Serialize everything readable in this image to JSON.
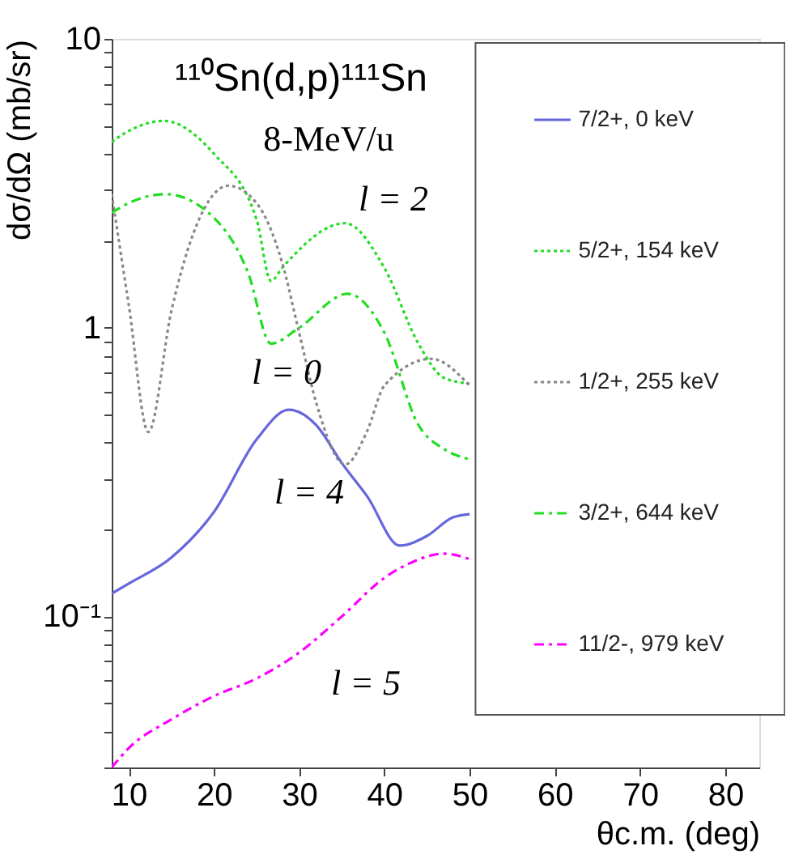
{
  "chart_data": {
    "type": "line",
    "title": "¹¹⁰Sn(d,p)¹¹¹Sn",
    "subtitle": "8-MeV/u",
    "xlabel": "θc.m. (deg)",
    "ylabel": "dσ/dΩ (mb/sr)",
    "log": "y",
    "grid": false,
    "legend": "right",
    "marker": "none",
    "xlim": [
      8,
      84
    ],
    "xticks": [
      10,
      20,
      30,
      40,
      50,
      60,
      70,
      80
    ],
    "ylim": [
      0.03,
      10
    ],
    "yticks": [
      {
        "value": 0.03,
        "label": null
      },
      {
        "value": 0.04,
        "label": null
      },
      {
        "value": 0.05,
        "label": null
      },
      {
        "value": 0.06,
        "label": null
      },
      {
        "value": 0.07,
        "label": null
      },
      {
        "value": 0.08,
        "label": null
      },
      {
        "value": 0.09,
        "label": null
      },
      {
        "value": 0.1,
        "label": "10⁻¹"
      },
      {
        "value": 0.2,
        "label": null
      },
      {
        "value": 0.3,
        "label": null
      },
      {
        "value": 0.4,
        "label": null
      },
      {
        "value": 0.5,
        "label": null
      },
      {
        "value": 0.6,
        "label": null
      },
      {
        "value": 0.7,
        "label": null
      },
      {
        "value": 0.8,
        "label": null
      },
      {
        "value": 0.9,
        "label": null
      },
      1,
      {
        "value": 2,
        "label": null
      },
      {
        "value": 3,
        "label": null
      },
      {
        "value": 4,
        "label": null
      },
      {
        "value": 5,
        "label": null
      },
      {
        "value": 6,
        "label": null
      },
      {
        "value": 7,
        "label": null
      },
      {
        "value": 8,
        "label": null
      },
      {
        "value": 9,
        "label": null
      },
      10
    ],
    "series": [
      {
        "name": "7/2+, 0 keV",
        "color": "#6666dd",
        "line_style": "solid",
        "x": [
          8,
          10,
          15,
          20,
          25,
          28.8,
          32,
          35,
          38,
          41.8,
          45,
          48,
          50
        ],
        "values": [
          0.12,
          0.13,
          0.16,
          0.23,
          0.41,
          0.52,
          0.46,
          0.34,
          0.26,
          0.176,
          0.19,
          0.22,
          0.226
        ]
      },
      {
        "name": "5/2+, 154 keV",
        "color": "#22dd22",
        "line_style": "dotted",
        "x": [
          8,
          10,
          14.1,
          20,
          25,
          26.7,
          28,
          35.4,
          40,
          44,
          47,
          50
        ],
        "values": [
          4.4,
          4.8,
          5.2,
          4.0,
          2.37,
          1.45,
          1.61,
          2.3,
          1.61,
          0.88,
          0.67,
          0.64
        ]
      },
      {
        "name": "1/2+, 255 keV",
        "color": "#888888",
        "line_style": "dotted",
        "x": [
          8,
          10,
          12.3,
          15,
          18,
          21.7,
          25,
          28,
          30,
          32,
          35.4,
          38,
          40,
          45.5,
          50
        ],
        "values": [
          2.9,
          1.2,
          0.435,
          1.14,
          2.28,
          3.1,
          2.7,
          1.68,
          0.96,
          0.55,
          0.336,
          0.44,
          0.63,
          0.78,
          0.63
        ]
      },
      {
        "name": "3/2+, 644 keV",
        "color": "#22dd22",
        "line_style": "dashed",
        "x": [
          8,
          10,
          14.3,
          20,
          24,
          26.7,
          30,
          35.7,
          40,
          44,
          47,
          50
        ],
        "values": [
          2.5,
          2.7,
          2.9,
          2.4,
          1.55,
          0.88,
          1.0,
          1.31,
          0.96,
          0.46,
          0.38,
          0.35
        ]
      },
      {
        "name": "11/2-, 979 keV",
        "color": "#ff00ff",
        "line_style": "dashed",
        "x": [
          8,
          10,
          15,
          20,
          25,
          30,
          35,
          40,
          43,
          47,
          50
        ],
        "values": [
          0.03,
          0.035,
          0.044,
          0.053,
          0.061,
          0.075,
          0.1,
          0.136,
          0.153,
          0.165,
          0.158
        ]
      }
    ],
    "annotations": [
      "l = 2",
      "l = 0",
      "l = 4",
      "l = 5"
    ]
  }
}
